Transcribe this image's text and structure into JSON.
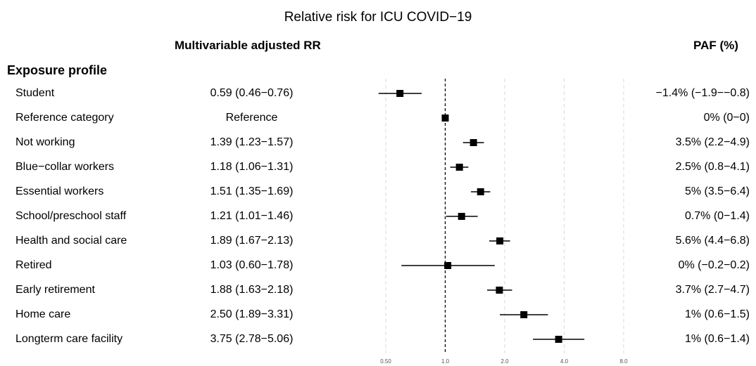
{
  "title": "Relative risk for ICU COVID−19",
  "headers": {
    "rr": "Multivariable adjusted RR",
    "paf": "PAF (%)",
    "section": "Exposure profile"
  },
  "rows": [
    {
      "label": "Student",
      "rr_text": "0.59 (0.46−0.76)",
      "paf": "−1.4% (−1.9−−0.8)"
    },
    {
      "label": "Reference category",
      "rr_text": "Reference",
      "paf": "0% (0−0)"
    },
    {
      "label": "Not working",
      "rr_text": "1.39 (1.23−1.57)",
      "paf": "3.5% (2.2−4.9)"
    },
    {
      "label": "Blue−collar workers",
      "rr_text": "1.18 (1.06−1.31)",
      "paf": "2.5% (0.8−4.1)"
    },
    {
      "label": "Essential workers",
      "rr_text": "1.51 (1.35−1.69)",
      "paf": "5% (3.5−6.4)"
    },
    {
      "label": "School/preschool staff",
      "rr_text": "1.21 (1.01−1.46)",
      "paf": "0.7% (0−1.4)"
    },
    {
      "label": "Health and social care",
      "rr_text": "1.89 (1.67−2.13)",
      "paf": "5.6% (4.4−6.8)"
    },
    {
      "label": "Retired",
      "rr_text": "1.03 (0.60−1.78)",
      "paf": "0% (−0.2−0.2)"
    },
    {
      "label": "Early retirement",
      "rr_text": "1.88 (1.63−2.18)",
      "paf": "3.7% (2.7−4.7)"
    },
    {
      "label": "Home care",
      "rr_text": "2.50 (1.89−3.31)",
      "paf": "1% (0.6−1.5)"
    },
    {
      "label": "Longterm care facility",
      "rr_text": "3.75 (2.78−5.06)",
      "paf": "1% (0.6−1.4)"
    }
  ],
  "chart_data": {
    "type": "scatter",
    "subtype": "forest",
    "title": "Relative risk for ICU COVID−19",
    "x_scale": "log2",
    "xlim": [
      0.5,
      8.0
    ],
    "xticks": [
      "0.50",
      "1.0",
      "2.0",
      "4.0",
      "8.0"
    ],
    "xtick_values": [
      0.5,
      1.0,
      2.0,
      4.0,
      8.0
    ],
    "reference_line": 1.0,
    "grid": "vertical dashed",
    "categories": [
      "Student",
      "Reference category",
      "Not working",
      "Blue−collar workers",
      "Essential workers",
      "School/preschool staff",
      "Health and social care",
      "Retired",
      "Early retirement",
      "Home care",
      "Longterm care facility"
    ],
    "estimate": [
      0.59,
      1.0,
      1.39,
      1.18,
      1.51,
      1.21,
      1.89,
      1.03,
      1.88,
      2.5,
      3.75
    ],
    "lower": [
      0.46,
      1.0,
      1.23,
      1.06,
      1.35,
      1.01,
      1.67,
      0.6,
      1.63,
      1.89,
      2.78
    ],
    "upper": [
      0.76,
      1.0,
      1.57,
      1.31,
      1.69,
      1.46,
      2.13,
      1.78,
      2.18,
      3.31,
      5.06
    ]
  }
}
